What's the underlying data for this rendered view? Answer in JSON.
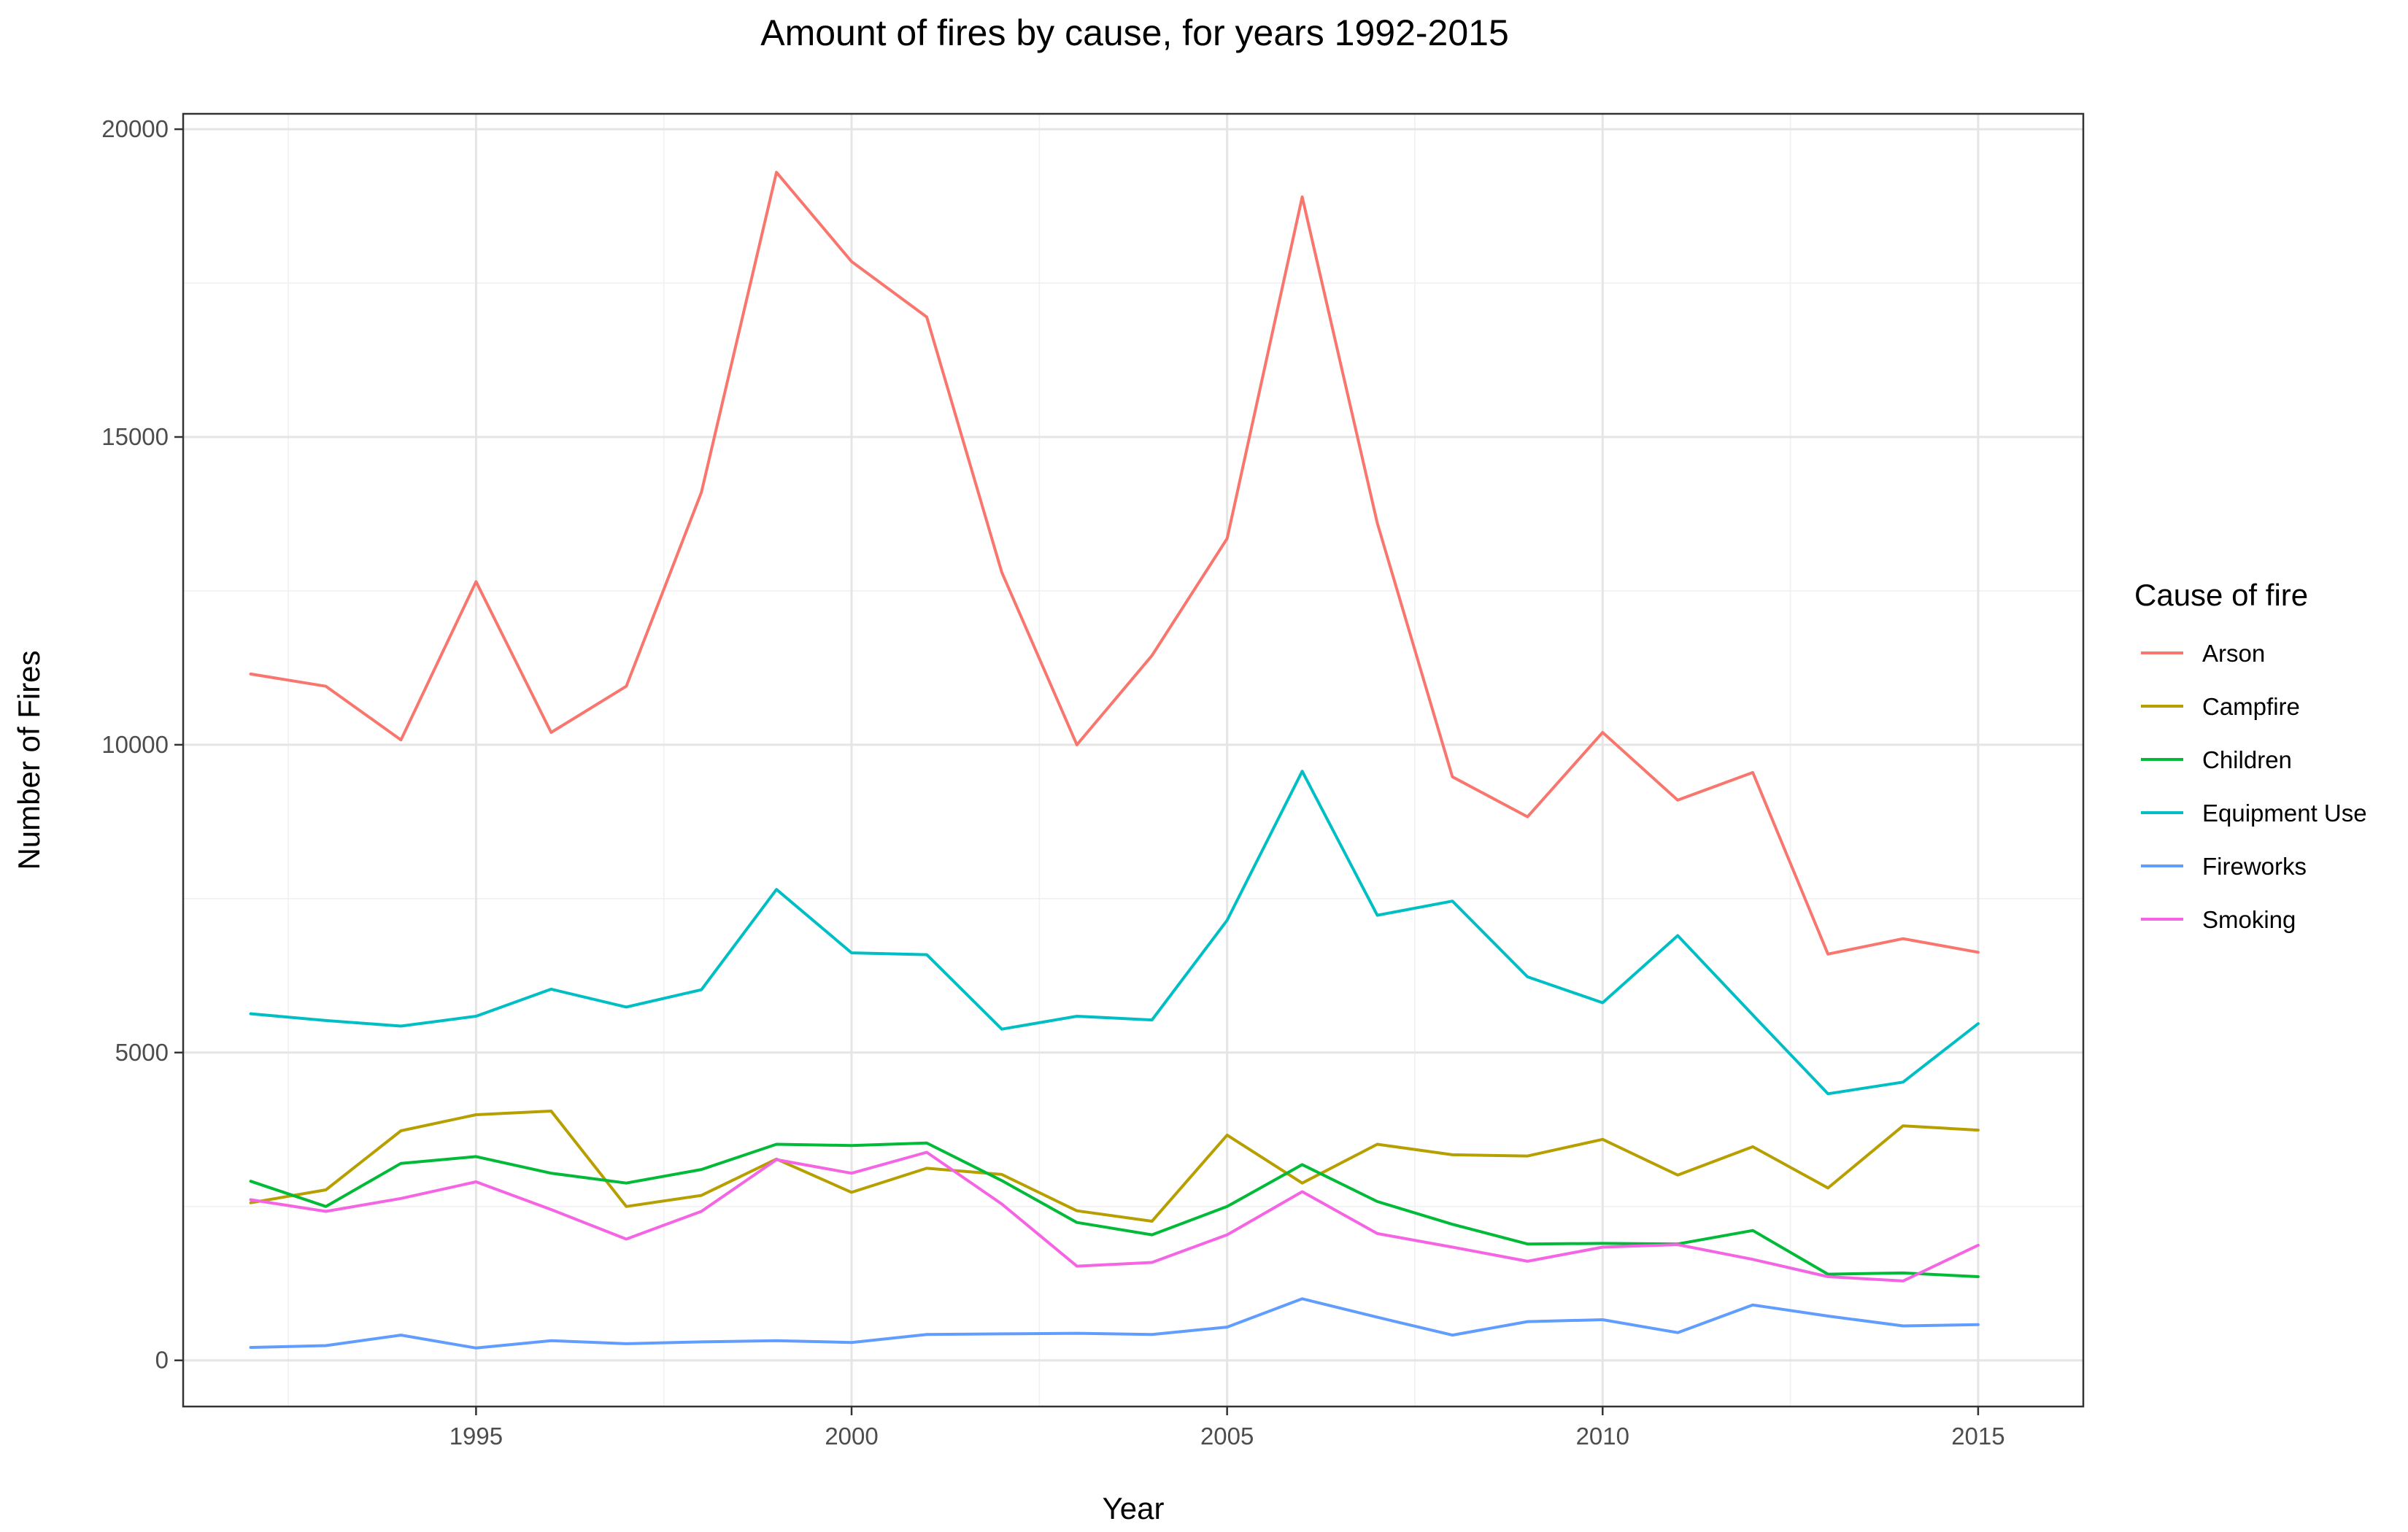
{
  "chart_data": {
    "type": "line",
    "title": "Amount of fires by cause, for years 1992-2015",
    "xlabel": "Year",
    "ylabel": "Number of Fires",
    "x": [
      1992,
      1993,
      1994,
      1995,
      1996,
      1997,
      1998,
      1999,
      2000,
      2001,
      2002,
      2003,
      2004,
      2005,
      2006,
      2007,
      2008,
      2009,
      2010,
      2011,
      2012,
      2013,
      2014,
      2015
    ],
    "xlim": [
      1991.1,
      2016.4
    ],
    "ylim": [
      -750,
      20250
    ],
    "x_ticks": [
      1995,
      2000,
      2005,
      2010,
      2015
    ],
    "x_tick_labels": [
      "1995",
      "2000",
      "2005",
      "2010",
      "2015"
    ],
    "x_minor_ticks": [
      1992.5,
      1997.5,
      2002.5,
      2007.5,
      2012.5
    ],
    "y_ticks": [
      0,
      5000,
      10000,
      15000,
      20000
    ],
    "y_tick_labels": [
      "0",
      "5000",
      "10000",
      "15000",
      "20000"
    ],
    "y_minor_ticks": [
      2500,
      7500,
      12500,
      17500
    ],
    "grid": true,
    "legend_position": "right",
    "legend_title": "Cause of fire",
    "series": [
      {
        "name": "Arson",
        "color": "#F8766D",
        "values": [
          11150,
          10950,
          10080,
          12650,
          10200,
          10950,
          14100,
          19300,
          17850,
          16950,
          12800,
          10000,
          11450,
          13350,
          18900,
          13600,
          9480,
          8830,
          10200,
          9100,
          9550,
          6600,
          6850,
          6630
        ]
      },
      {
        "name": "Campfire",
        "color": "#B79F00",
        "values": [
          2560,
          2770,
          3730,
          3990,
          4050,
          2500,
          2680,
          3270,
          2730,
          3120,
          3020,
          2430,
          2260,
          3660,
          2880,
          3510,
          3340,
          3320,
          3590,
          3010,
          3470,
          2800,
          3810,
          3740
        ]
      },
      {
        "name": "Children",
        "color": "#00BA38",
        "values": [
          2910,
          2500,
          3200,
          3310,
          3040,
          2880,
          3100,
          3510,
          3490,
          3530,
          2920,
          2240,
          2040,
          2500,
          3180,
          2580,
          2210,
          1890,
          1900,
          1890,
          2110,
          1400,
          1420,
          1360
        ]
      },
      {
        "name": "Equipment Use",
        "color": "#00BFC4",
        "values": [
          5630,
          5520,
          5430,
          5590,
          6030,
          5740,
          6020,
          7650,
          6620,
          6590,
          5380,
          5590,
          5530,
          7150,
          9570,
          7230,
          7460,
          6230,
          5810,
          6900,
          5610,
          4330,
          4520,
          5470
        ]
      },
      {
        "name": "Fireworks",
        "color": "#619CFF",
        "values": [
          210,
          240,
          410,
          200,
          320,
          270,
          300,
          320,
          290,
          420,
          430,
          440,
          420,
          540,
          1000,
          700,
          410,
          630,
          660,
          450,
          900,
          720,
          560,
          580
        ]
      },
      {
        "name": "Smoking",
        "color": "#F564E3",
        "values": [
          2610,
          2420,
          2630,
          2900,
          2450,
          1970,
          2420,
          3260,
          3040,
          3380,
          2540,
          1530,
          1590,
          2040,
          2740,
          2060,
          1840,
          1610,
          1840,
          1880,
          1640,
          1360,
          1290,
          1870
        ]
      }
    ]
  }
}
